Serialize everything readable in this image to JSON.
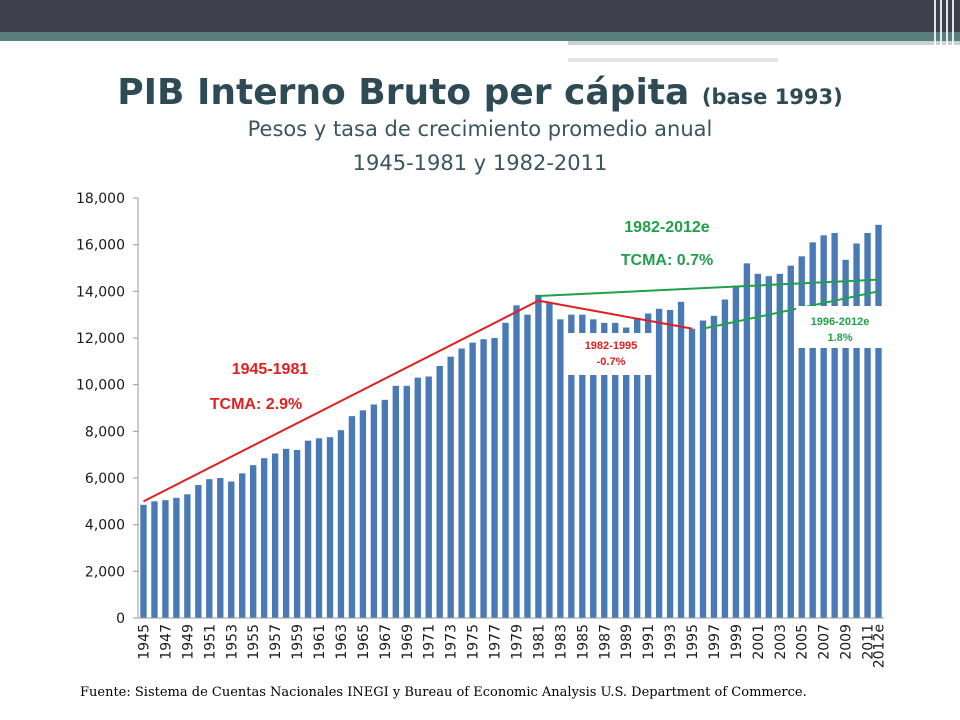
{
  "header": {
    "title": "PIB Interno Bruto per cápita",
    "title_suffix": "(base 1993)",
    "subtitle": "Pesos y tasa de crecimiento promedio anual",
    "subtitle2": "1945-1981 y 1982-2011"
  },
  "source": "Fuente: Sistema de Cuentas Nacionales INEGI y Bureau  of Economic Analysis U.S. Department of Commerce.",
  "colors": {
    "bar": "#4a7ab5",
    "red": "#e02020",
    "green": "#20a04a",
    "axis": "#9a9a9a",
    "header_dark": "#3f3f4e",
    "teal": "#5a7d7e"
  },
  "chart_data": {
    "type": "bar",
    "categories": [
      "1945",
      "1946",
      "1947",
      "1948",
      "1949",
      "1950",
      "1951",
      "1952",
      "1953",
      "1954",
      "1955",
      "1956",
      "1957",
      "1958",
      "1959",
      "1960",
      "1961",
      "1962",
      "1963",
      "1964",
      "1965",
      "1966",
      "1967",
      "1968",
      "1969",
      "1970",
      "1971",
      "1972",
      "1973",
      "1974",
      "1975",
      "1976",
      "1977",
      "1978",
      "1979",
      "1980",
      "1981",
      "1982",
      "1983",
      "1984",
      "1985",
      "1986",
      "1987",
      "1988",
      "1989",
      "1990",
      "1991",
      "1992",
      "1993",
      "1994",
      "1995",
      "1996",
      "1997",
      "1998",
      "1999",
      "2000",
      "2001",
      "2002",
      "2003",
      "2004",
      "2005",
      "2006",
      "2007",
      "2008",
      "2009",
      "2010",
      "2011",
      "2012e"
    ],
    "x_tick_labels": [
      "1945",
      "1947",
      "1949",
      "1951",
      "1953",
      "1955",
      "1957",
      "1959",
      "1961",
      "1963",
      "1965",
      "1967",
      "1969",
      "1971",
      "1973",
      "1975",
      "1977",
      "1979",
      "1981",
      "1983",
      "1985",
      "1987",
      "1989",
      "1991",
      "1993",
      "1995",
      "1997",
      "1999",
      "2001",
      "2003",
      "2005",
      "2007",
      "2009",
      "2011",
      "2012e"
    ],
    "values": [
      4850,
      5000,
      5050,
      5150,
      5300,
      5700,
      5950,
      6000,
      5850,
      6200,
      6550,
      6850,
      7050,
      7250,
      7200,
      7600,
      7700,
      7750,
      8050,
      8650,
      8900,
      9150,
      9350,
      9950,
      9950,
      10300,
      10350,
      10800,
      11200,
      11550,
      11800,
      11950,
      12000,
      12650,
      13400,
      13000,
      13850,
      13500,
      12800,
      13000,
      13000,
      12800,
      12650,
      12650,
      12450,
      12850,
      13050,
      13250,
      13200,
      13550,
      12400,
      12750,
      12950,
      13650,
      14250,
      15200,
      14750,
      14650,
      14750,
      15100,
      15500,
      16100,
      16400,
      16500,
      15350,
      16050,
      16500,
      16850
    ],
    "ylim": [
      0,
      18000
    ],
    "yticks": [
      0,
      2000,
      4000,
      6000,
      8000,
      10000,
      12000,
      14000,
      16000,
      18000
    ],
    "ytick_labels": [
      "0",
      "2,000",
      "4,000",
      "6,000",
      "8,000",
      "10,000",
      "12,000",
      "14,000",
      "16,000",
      "18,000"
    ],
    "grid": false,
    "trend_lines": [
      {
        "from_year": "1945",
        "from_value": 5000,
        "to_year": "1981",
        "to_value": 13600,
        "color": "red"
      },
      {
        "from_year": "1981",
        "from_value": 13600,
        "to_year": "1995",
        "to_value": 12400,
        "color": "red"
      },
      {
        "from_year": "1981",
        "from_value": 13800,
        "to_year": "2012e",
        "to_value": 14500,
        "color": "green"
      },
      {
        "from_year": "1996",
        "from_value": 12400,
        "to_year": "2012e",
        "to_value": 14000,
        "color": "green"
      }
    ],
    "annotations": [
      {
        "label": "1945-1981",
        "rate": "TCMA: 2.9%",
        "color": "red"
      },
      {
        "label": "1982-2012e",
        "rate": "TCMA: 0.7%",
        "color": "green"
      },
      {
        "label": "1982-1995",
        "rate": "-0.7%",
        "color": "red"
      },
      {
        "label": "1996-2012e",
        "rate": "1.8%",
        "color": "green"
      }
    ]
  }
}
